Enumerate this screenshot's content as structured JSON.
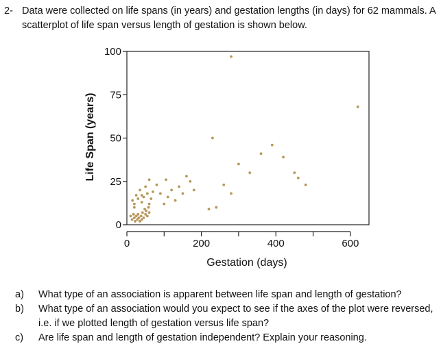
{
  "problem": {
    "number": "2-",
    "stem": "Data were collected on life spans (in years) and gestation lengths (in days) for 62 mammals. A scatterplot of life span versus length of gestation is shown below."
  },
  "chart_data": {
    "type": "scatter",
    "xlabel": "Gestation (days)",
    "ylabel": "Life Span (years)",
    "xlim": [
      0,
      650
    ],
    "ylim": [
      0,
      100
    ],
    "x_ticks": [
      0,
      200,
      400,
      600
    ],
    "x_tick_labels": [
      "0",
      "200",
      "400",
      "600"
    ],
    "x_minor_ticks": [
      100,
      300,
      500
    ],
    "y_ticks": [
      0,
      25,
      50,
      75,
      100
    ],
    "y_tick_labels": [
      "0",
      "25",
      "50",
      "75",
      "100"
    ],
    "grid": false,
    "point_color": "#b8975a",
    "points": [
      {
        "x": 10,
        "y": 5
      },
      {
        "x": 14,
        "y": 3
      },
      {
        "x": 18,
        "y": 6
      },
      {
        "x": 20,
        "y": 4
      },
      {
        "x": 22,
        "y": 2
      },
      {
        "x": 25,
        "y": 5
      },
      {
        "x": 28,
        "y": 3
      },
      {
        "x": 30,
        "y": 6
      },
      {
        "x": 32,
        "y": 4
      },
      {
        "x": 35,
        "y": 2
      },
      {
        "x": 38,
        "y": 5
      },
      {
        "x": 40,
        "y": 3
      },
      {
        "x": 42,
        "y": 7
      },
      {
        "x": 45,
        "y": 4
      },
      {
        "x": 48,
        "y": 9
      },
      {
        "x": 50,
        "y": 6
      },
      {
        "x": 52,
        "y": 8
      },
      {
        "x": 55,
        "y": 5
      },
      {
        "x": 58,
        "y": 10
      },
      {
        "x": 60,
        "y": 7
      },
      {
        "x": 15,
        "y": 14
      },
      {
        "x": 20,
        "y": 12
      },
      {
        "x": 25,
        "y": 17
      },
      {
        "x": 30,
        "y": 15
      },
      {
        "x": 35,
        "y": 20
      },
      {
        "x": 40,
        "y": 13
      },
      {
        "x": 45,
        "y": 16
      },
      {
        "x": 50,
        "y": 22
      },
      {
        "x": 55,
        "y": 18
      },
      {
        "x": 60,
        "y": 26
      },
      {
        "x": 65,
        "y": 15
      },
      {
        "x": 70,
        "y": 19
      },
      {
        "x": 20,
        "y": 10
      },
      {
        "x": 40,
        "y": 17
      },
      {
        "x": 60,
        "y": 12
      },
      {
        "x": 80,
        "y": 23
      },
      {
        "x": 90,
        "y": 18
      },
      {
        "x": 100,
        "y": 12
      },
      {
        "x": 105,
        "y": 26
      },
      {
        "x": 110,
        "y": 16
      },
      {
        "x": 120,
        "y": 20
      },
      {
        "x": 130,
        "y": 14
      },
      {
        "x": 140,
        "y": 22
      },
      {
        "x": 150,
        "y": 18
      },
      {
        "x": 160,
        "y": 28
      },
      {
        "x": 170,
        "y": 25
      },
      {
        "x": 180,
        "y": 20
      },
      {
        "x": 220,
        "y": 9
      },
      {
        "x": 240,
        "y": 10
      },
      {
        "x": 260,
        "y": 23
      },
      {
        "x": 280,
        "y": 18
      },
      {
        "x": 300,
        "y": 35
      },
      {
        "x": 330,
        "y": 30
      },
      {
        "x": 360,
        "y": 41
      },
      {
        "x": 390,
        "y": 46
      },
      {
        "x": 420,
        "y": 39
      },
      {
        "x": 450,
        "y": 30
      },
      {
        "x": 460,
        "y": 27
      },
      {
        "x": 480,
        "y": 23
      },
      {
        "x": 230,
        "y": 50
      },
      {
        "x": 280,
        "y": 97
      },
      {
        "x": 620,
        "y": 68
      }
    ]
  },
  "questions": [
    {
      "label": "a)",
      "text": "What type of an association is apparent between life span and length of gestation?"
    },
    {
      "label": "b)",
      "text": "What type of an association would you expect to see if the axes of the plot were reversed, i.e. if we plotted length of gestation versus life span?"
    },
    {
      "label": "c)",
      "text": "Are life span and length of gestation independent? Explain your reasoning."
    }
  ]
}
